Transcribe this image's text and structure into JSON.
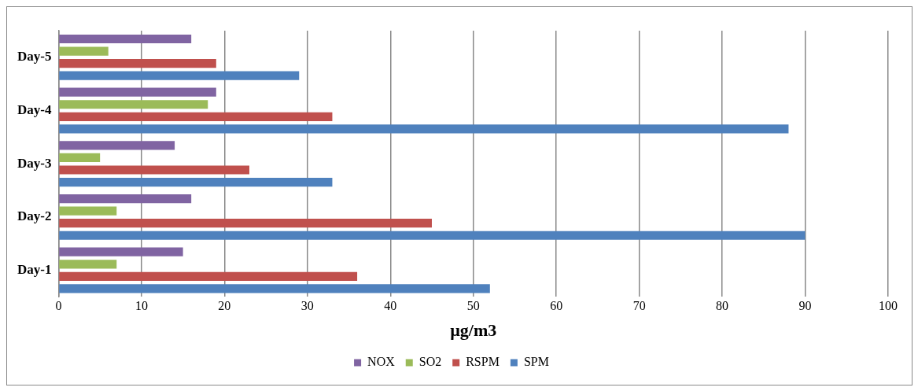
{
  "chart_data": {
    "type": "bar",
    "orientation": "horizontal",
    "categories": [
      "Day-5",
      "Day-4",
      "Day-3",
      "Day-2",
      "Day-1"
    ],
    "series": [
      {
        "name": "NOX",
        "color": "#8064a2",
        "values": [
          16,
          19,
          14,
          16,
          15
        ]
      },
      {
        "name": "SO2",
        "color": "#9bbb59",
        "values": [
          6,
          18,
          5,
          7,
          7
        ]
      },
      {
        "name": "RSPM",
        "color": "#c0504d",
        "values": [
          19,
          33,
          23,
          45,
          36
        ]
      },
      {
        "name": "SPM",
        "color": "#4f81bd",
        "values": [
          29,
          88,
          33,
          90,
          52
        ]
      }
    ],
    "xlabel": "µg/m3",
    "xlim": [
      0,
      100
    ],
    "xticks": [
      0,
      10,
      20,
      30,
      40,
      50,
      60,
      70,
      80,
      90,
      100
    ],
    "grid": "x",
    "legend": "bottom"
  }
}
